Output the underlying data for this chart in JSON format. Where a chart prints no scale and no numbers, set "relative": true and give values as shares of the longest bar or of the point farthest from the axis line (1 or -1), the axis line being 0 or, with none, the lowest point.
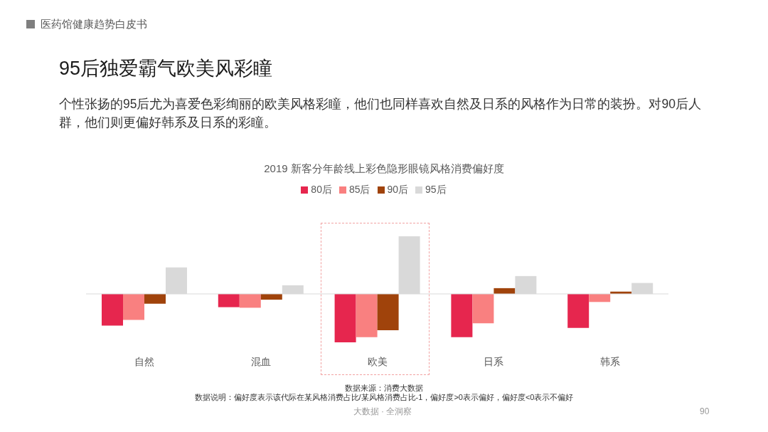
{
  "chart_data": {
    "type": "bar",
    "relative": true,
    "title": "2019 新客分年龄线上彩色隐形眼镜风格消费偏好度",
    "categories": [
      "自然",
      "混血",
      "欧美",
      "日系",
      "韩系"
    ],
    "series": [
      {
        "name": "80后",
        "color": "#e6264e",
        "values": [
          -0.55,
          -0.23,
          -0.84,
          -0.75,
          -0.59
        ]
      },
      {
        "name": "85后",
        "color": "#f98080",
        "values": [
          -0.45,
          -0.24,
          -0.75,
          -0.51,
          -0.14
        ]
      },
      {
        "name": "90后",
        "color": "#a0430b",
        "values": [
          -0.17,
          -0.1,
          -0.63,
          0.1,
          0.04
        ]
      },
      {
        "name": "95后",
        "color": "#d9d9d9",
        "values": [
          0.46,
          0.15,
          1,
          0.31,
          0.19
        ]
      }
    ],
    "legend": "top",
    "annotations": [
      "医药馆健康趋势白皮书",
      "95后独爱霸气欧美风彩瞳",
      "个性张扬的95后尤为喜爱色彩绚丽的欧美风格彩瞳，他们也同样喜欢自然及日系的风格作为日常的装扮。对90后人群，他们则更偏好韩系及日系的彩瞳。",
      "数据来源：消费大数据",
      "数据说明：偏好度表示该代际在某风格消费占比/某风格消费占比-1，偏好度>0表示偏好，偏好度<0表示不偏好",
      "大数据 · 全洞察",
      "90"
    ]
  }
}
